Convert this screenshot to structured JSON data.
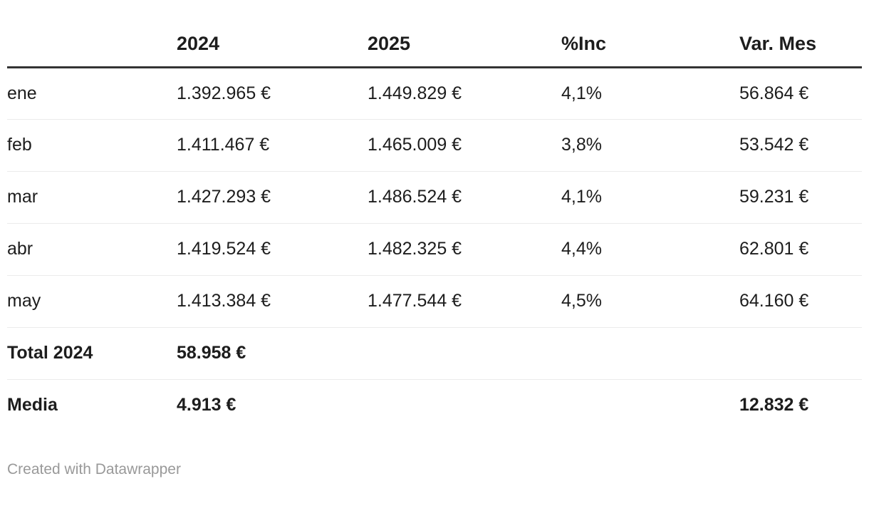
{
  "chart_data": {
    "type": "table",
    "columns": [
      "",
      "2024",
      "2025",
      "%Inc",
      "Var. Mes"
    ],
    "rows": [
      {
        "label": "ene",
        "y2024": "1.392.965 €",
        "y2025": "1.449.829 €",
        "inc": "4,1%",
        "var_mes": "56.864 €",
        "bold": false
      },
      {
        "label": "feb",
        "y2024": "1.411.467 €",
        "y2025": "1.465.009 €",
        "inc": "3,8%",
        "var_mes": "53.542 €",
        "bold": false
      },
      {
        "label": "mar",
        "y2024": "1.427.293 €",
        "y2025": "1.486.524 €",
        "inc": "4,1%",
        "var_mes": "59.231 €",
        "bold": false
      },
      {
        "label": "abr",
        "y2024": "1.419.524 €",
        "y2025": "1.482.325 €",
        "inc": "4,4%",
        "var_mes": "62.801 €",
        "bold": false
      },
      {
        "label": "may",
        "y2024": "1.413.384 €",
        "y2025": "1.477.544 €",
        "inc": "4,5%",
        "var_mes": "64.160 €",
        "bold": false
      },
      {
        "label": "Total 2024",
        "y2024": "58.958 €",
        "y2025": "",
        "inc": "",
        "var_mes": "",
        "bold": true
      },
      {
        "label": "Media",
        "y2024": "4.913 €",
        "y2025": "",
        "inc": "",
        "var_mes": "12.832 €",
        "bold": true
      }
    ],
    "title": "",
    "legend_position": "none",
    "grid": "horizontal-rules-only"
  },
  "footer": {
    "credit": "Created with Datawrapper"
  },
  "colors": {
    "text": "#1d1d1d",
    "header_rule": "#333333",
    "row_rule": "#ebebeb",
    "credit": "#999999",
    "background": "#ffffff"
  }
}
